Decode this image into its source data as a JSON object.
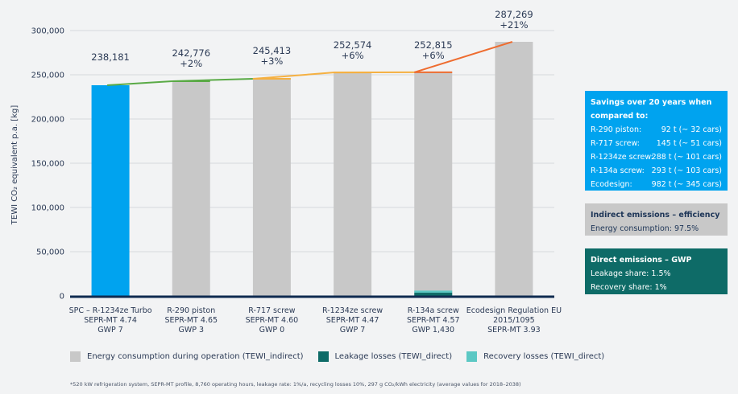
{
  "chart_data": {
    "type": "bar",
    "ylabel": "TEWI CO₂ equivalent p.a. [kg]",
    "ylim": [
      0,
      300000
    ],
    "yticks": [
      "0",
      "50,000",
      "100,000",
      "150,000",
      "200,000",
      "250,000",
      "300,000"
    ],
    "ytick_values": [
      0,
      50000,
      100000,
      150000,
      200000,
      250000,
      300000
    ],
    "grid": true,
    "categories": [
      [
        "SPC – R-1234ze Turbo",
        "SEPR-MT 4.74",
        "GWP 7"
      ],
      [
        "R-290 piston",
        "SEPR-MT 4.65",
        "GWP 3"
      ],
      [
        "R-717 screw",
        "SEPR-MT 4.60",
        "GWP 0"
      ],
      [
        "R-1234ze screw",
        "SEPR-MT 4.47",
        "GWP 7"
      ],
      [
        "R-134a screw",
        "SEPR-MT 4.57",
        "GWP 1,430"
      ],
      [
        "Ecodesign Regulation EU",
        "2015/1095",
        "SEPR-MT 3.93"
      ]
    ],
    "values": [
      238181,
      242776,
      245413,
      252574,
      252815,
      287269
    ],
    "value_labels": [
      "238,181",
      "242,776",
      "245,413",
      "252,574",
      "252,815",
      "287,269"
    ],
    "pct_labels": [
      "",
      "+2%",
      "+3%",
      "+6%",
      "+6%",
      "+21%"
    ],
    "bar_colors": [
      "#00a3ef",
      "#c8c8c8",
      "#c8c8c8",
      "#c8c8c8",
      "#c8c8c8",
      "#c8c8c8"
    ],
    "stacked_direct": {
      "index": 4,
      "leakage": 3600,
      "recovery": 2400
    },
    "trend_line_colors": [
      "#5aaa46",
      "#f5b041",
      "#ee6c2f"
    ],
    "series": [
      {
        "name": "Energy consumption during operation (TEWI_indirect)",
        "color": "#c8c8c8"
      },
      {
        "name": "Leakage losses (TEWI_direct)",
        "color": "#0e6b67"
      },
      {
        "name": "Recovery losses (TEWI_direct)",
        "color": "#5cc8c4"
      }
    ]
  },
  "savings": {
    "title": "Savings over 20 years when compared to:",
    "rows": [
      {
        "name": "R-290 piston:",
        "value": "92 t (~ 32 cars)"
      },
      {
        "name": "R-717 screw:",
        "value": "145 t (~ 51 cars)"
      },
      {
        "name": "R-1234ze screw:",
        "value": "288 t (~ 101 cars)"
      },
      {
        "name": "R-134a screw:",
        "value": "293 t (~ 103 cars)"
      },
      {
        "name": "Ecodesign:",
        "value": "982 t (~ 345 cars)"
      }
    ]
  },
  "indirect": {
    "title": "Indirect emissions – efficiency",
    "line": "Energy consumption: 97.5%"
  },
  "direct": {
    "title": "Direct emissions – GWP",
    "line1": "Leakage share: 1.5%",
    "line2": "Recovery share: 1%"
  },
  "footnote": "*520 kW refrigeration system, SEPR-MT profile, 8,760 operating hours, leakage rate: 1%/a, recycling losses 10%, 297 g CO₂/kWh electricity (average values for 2018–2038)"
}
